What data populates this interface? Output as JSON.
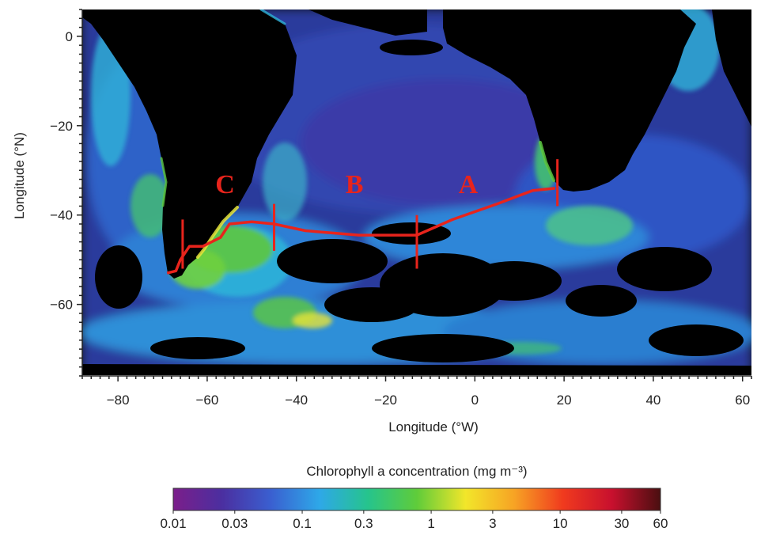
{
  "axes": {
    "x_title": "Longitude (°W)",
    "y_title": "Longitude (°N)",
    "x_ticks": [
      "−80",
      "−60",
      "−40",
      "−20",
      "0",
      "20",
      "40",
      "60"
    ],
    "y_ticks": [
      "0",
      "−20",
      "−40",
      "−60"
    ],
    "x_tick_values": [
      -80,
      -60,
      -40,
      -20,
      0,
      20,
      40,
      60
    ],
    "y_tick_values": [
      0,
      -20,
      -40,
      -60
    ],
    "x_range": [
      -88,
      62
    ],
    "y_range": [
      -76,
      6
    ]
  },
  "transect": {
    "segment_labels": [
      "C",
      "B",
      "A"
    ],
    "segment_label_positions": [
      {
        "lon": -56,
        "lat": -33
      },
      {
        "lon": -27,
        "lat": -33
      },
      {
        "lon": -1.5,
        "lat": -33
      }
    ],
    "track": [
      {
        "lon": -69,
        "lat": -53
      },
      {
        "lon": -67,
        "lat": -52.5
      },
      {
        "lon": -66,
        "lat": -50
      },
      {
        "lon": -64,
        "lat": -47
      },
      {
        "lon": -61,
        "lat": -47
      },
      {
        "lon": -59,
        "lat": -46
      },
      {
        "lon": -57,
        "lat": -45
      },
      {
        "lon": -55,
        "lat": -42
      },
      {
        "lon": -50,
        "lat": -41.5
      },
      {
        "lon": -45,
        "lat": -42
      },
      {
        "lon": -38,
        "lat": -43.5
      },
      {
        "lon": -26,
        "lat": -44.5
      },
      {
        "lon": -13,
        "lat": -44.5
      },
      {
        "lon": -5,
        "lat": -41
      },
      {
        "lon": 5,
        "lat": -37.5
      },
      {
        "lon": 13,
        "lat": -34.5
      },
      {
        "lon": 18,
        "lat": -34
      }
    ],
    "boundaries": [
      {
        "lon": -65.5,
        "lat_top": -41,
        "lat_bottom": -52
      },
      {
        "lon": -45,
        "lat_top": -37.5,
        "lat_bottom": -48
      },
      {
        "lon": -13,
        "lat_top": -40,
        "lat_bottom": -52
      },
      {
        "lon": 18.5,
        "lat_top": -27.5,
        "lat_bottom": -38
      }
    ],
    "color": "#e8241c"
  },
  "colorbar": {
    "title": "Chlorophyll a concentration (mg m⁻³)",
    "tick_labels": [
      "0.01",
      "0.03",
      "0.1",
      "0.3",
      "1",
      "3",
      "10",
      "30",
      "60"
    ],
    "tick_values": [
      0.01,
      0.03,
      0.1,
      0.3,
      1,
      3,
      10,
      30,
      60
    ],
    "scale": "log",
    "colors": [
      "#7b1e8a",
      "#4b2fa0",
      "#3a5fd0",
      "#2ea8e8",
      "#26c48c",
      "#5fcc3a",
      "#f2e62a",
      "#f7a324",
      "#f03a1e",
      "#c8102e",
      "#4a0f10"
    ]
  },
  "map_colors": {
    "land": "#000000",
    "ocean_low": "#2b3a9c",
    "ocean_mid": "#2c6fd6",
    "ocean_high": "#34c0e0",
    "bloom": "#5cc740",
    "bloom_high": "#e7e43a"
  }
}
